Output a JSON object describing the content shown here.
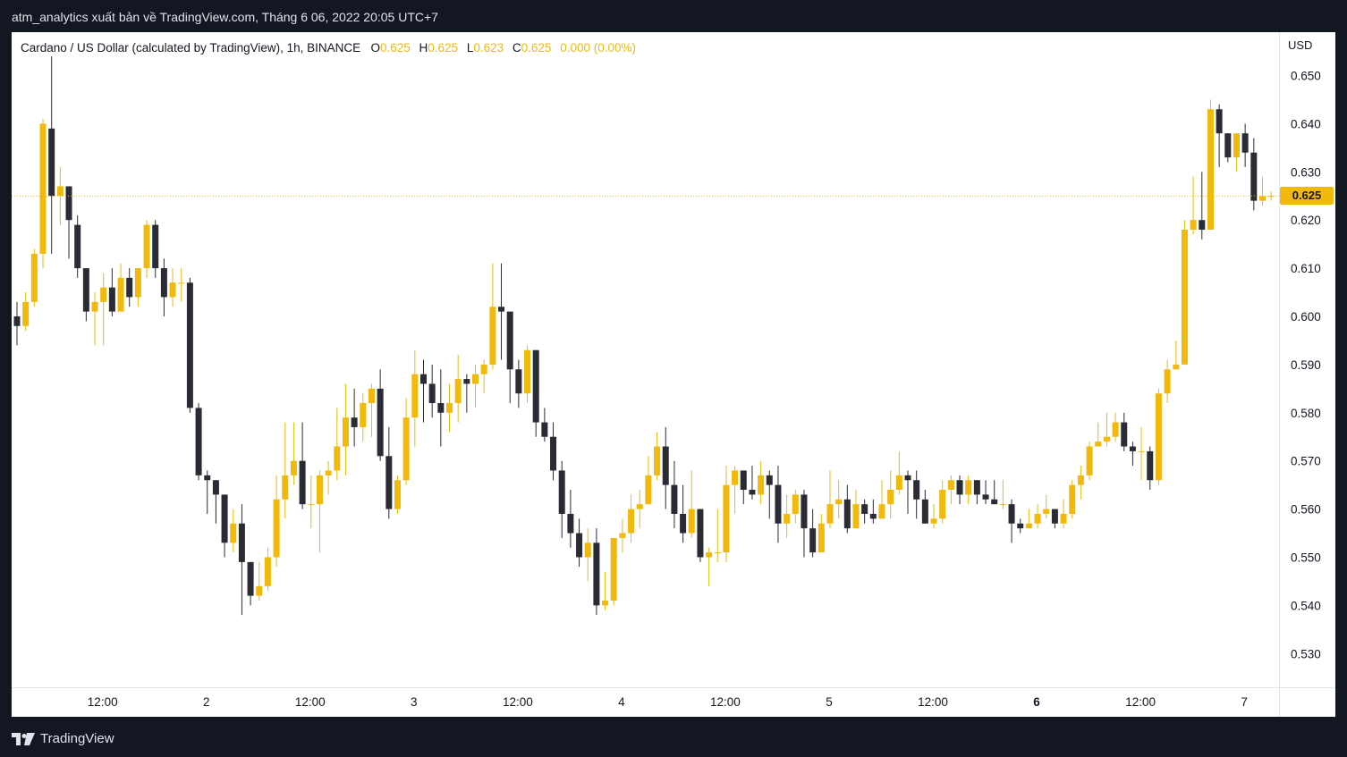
{
  "header": {
    "publisher_line": "atm_analytics xuất bản về TradingView.com, Tháng 6 06, 2022 20:05 UTC+7"
  },
  "legend": {
    "symbol": "Cardano / US Dollar (calculated by TradingView), 1h, BINANCE",
    "o_label": "O",
    "o_value": "0.625",
    "h_label": "H",
    "h_value": "0.625",
    "l_label": "L",
    "l_value": "0.623",
    "c_label": "C",
    "c_value": "0.625",
    "change": "0.000 (0.00%)"
  },
  "price_axis": {
    "currency": "USD",
    "last_price_label": "0.625"
  },
  "footer": {
    "brand": "TradingView"
  },
  "colors": {
    "up": "#f0b90b",
    "down": "#2b2b36",
    "background_outer": "#131722",
    "chart_background": "#ffffff",
    "last_price_line": "#f0b90b"
  },
  "chart_data": {
    "type": "candlestick",
    "symbol": "ADAUSD",
    "interval": "1h",
    "y_ticks": [
      "0.530",
      "0.540",
      "0.550",
      "0.560",
      "0.570",
      "0.580",
      "0.590",
      "0.600",
      "0.610",
      "0.620",
      "0.630",
      "0.640",
      "0.650"
    ],
    "ylim": [
      0.523,
      0.659
    ],
    "x_ticks": [
      {
        "label": "12:00",
        "bar": 10,
        "bold": false
      },
      {
        "label": "2",
        "bar": 22,
        "bold": false
      },
      {
        "label": "12:00",
        "bar": 34,
        "bold": false
      },
      {
        "label": "3",
        "bar": 46,
        "bold": false
      },
      {
        "label": "12:00",
        "bar": 58,
        "bold": false
      },
      {
        "label": "4",
        "bar": 70,
        "bold": false
      },
      {
        "label": "12:00",
        "bar": 82,
        "bold": false
      },
      {
        "label": "5",
        "bar": 94,
        "bold": false
      },
      {
        "label": "12:00",
        "bar": 106,
        "bold": false
      },
      {
        "label": "6",
        "bar": 118,
        "bold": true
      },
      {
        "label": "12:00",
        "bar": 130,
        "bold": false
      },
      {
        "label": "7",
        "bar": 142,
        "bold": false
      }
    ],
    "last_price": 0.625,
    "candles": [
      [
        0.6,
        0.598,
        0.603,
        0.594
      ],
      [
        0.598,
        0.603,
        0.605,
        0.597
      ],
      [
        0.603,
        0.613,
        0.614,
        0.602
      ],
      [
        0.613,
        0.64,
        0.641,
        0.61
      ],
      [
        0.639,
        0.625,
        0.654,
        0.613
      ],
      [
        0.625,
        0.627,
        0.631,
        0.619
      ],
      [
        0.627,
        0.62,
        0.627,
        0.612
      ],
      [
        0.619,
        0.61,
        0.621,
        0.608
      ],
      [
        0.61,
        0.601,
        0.61,
        0.599
      ],
      [
        0.601,
        0.603,
        0.605,
        0.594
      ],
      [
        0.603,
        0.606,
        0.609,
        0.594
      ],
      [
        0.606,
        0.601,
        0.61,
        0.6
      ],
      [
        0.601,
        0.608,
        0.611,
        0.601
      ],
      [
        0.608,
        0.604,
        0.61,
        0.602
      ],
      [
        0.604,
        0.61,
        0.61,
        0.602
      ],
      [
        0.61,
        0.619,
        0.62,
        0.608
      ],
      [
        0.619,
        0.61,
        0.62,
        0.608
      ],
      [
        0.61,
        0.604,
        0.612,
        0.6
      ],
      [
        0.604,
        0.607,
        0.61,
        0.602
      ],
      [
        0.607,
        0.607,
        0.61,
        0.603
      ],
      [
        0.607,
        0.581,
        0.608,
        0.58
      ],
      [
        0.581,
        0.567,
        0.582,
        0.566
      ],
      [
        0.567,
        0.566,
        0.568,
        0.559
      ],
      [
        0.566,
        0.563,
        0.566,
        0.557
      ],
      [
        0.563,
        0.553,
        0.563,
        0.55
      ],
      [
        0.553,
        0.557,
        0.56,
        0.551
      ],
      [
        0.557,
        0.549,
        0.561,
        0.538
      ],
      [
        0.549,
        0.542,
        0.549,
        0.54
      ],
      [
        0.542,
        0.544,
        0.549,
        0.541
      ],
      [
        0.544,
        0.55,
        0.552,
        0.543
      ],
      [
        0.55,
        0.562,
        0.567,
        0.548
      ],
      [
        0.562,
        0.567,
        0.578,
        0.558
      ],
      [
        0.567,
        0.57,
        0.578,
        0.565
      ],
      [
        0.57,
        0.561,
        0.578,
        0.56
      ],
      [
        0.561,
        0.561,
        0.567,
        0.556
      ],
      [
        0.561,
        0.567,
        0.568,
        0.551
      ],
      [
        0.567,
        0.568,
        0.57,
        0.563
      ],
      [
        0.568,
        0.573,
        0.581,
        0.566
      ],
      [
        0.573,
        0.579,
        0.586,
        0.567
      ],
      [
        0.579,
        0.577,
        0.585,
        0.573
      ],
      [
        0.577,
        0.582,
        0.584,
        0.574
      ],
      [
        0.582,
        0.585,
        0.586,
        0.575
      ],
      [
        0.585,
        0.571,
        0.589,
        0.57
      ],
      [
        0.571,
        0.56,
        0.577,
        0.558
      ],
      [
        0.56,
        0.566,
        0.567,
        0.559
      ],
      [
        0.566,
        0.579,
        0.583,
        0.565
      ],
      [
        0.579,
        0.588,
        0.593,
        0.573
      ],
      [
        0.588,
        0.586,
        0.591,
        0.578
      ],
      [
        0.586,
        0.582,
        0.59,
        0.579
      ],
      [
        0.582,
        0.58,
        0.589,
        0.573
      ],
      [
        0.58,
        0.582,
        0.586,
        0.576
      ],
      [
        0.582,
        0.587,
        0.592,
        0.578
      ],
      [
        0.587,
        0.586,
        0.588,
        0.58
      ],
      [
        0.586,
        0.588,
        0.59,
        0.581
      ],
      [
        0.588,
        0.59,
        0.591,
        0.584
      ],
      [
        0.59,
        0.602,
        0.611,
        0.589
      ],
      [
        0.602,
        0.601,
        0.611,
        0.591
      ],
      [
        0.601,
        0.589,
        0.595,
        0.582
      ],
      [
        0.589,
        0.584,
        0.591,
        0.581
      ],
      [
        0.584,
        0.593,
        0.594,
        0.582
      ],
      [
        0.593,
        0.578,
        0.593,
        0.575
      ],
      [
        0.578,
        0.575,
        0.581,
        0.574
      ],
      [
        0.575,
        0.568,
        0.578,
        0.566
      ],
      [
        0.568,
        0.559,
        0.57,
        0.554
      ],
      [
        0.559,
        0.555,
        0.564,
        0.552
      ],
      [
        0.555,
        0.55,
        0.558,
        0.548
      ],
      [
        0.55,
        0.553,
        0.556,
        0.545
      ],
      [
        0.553,
        0.54,
        0.556,
        0.538
      ],
      [
        0.54,
        0.541,
        0.547,
        0.539
      ],
      [
        0.541,
        0.554,
        0.554,
        0.54
      ],
      [
        0.554,
        0.555,
        0.558,
        0.551
      ],
      [
        0.555,
        0.56,
        0.563,
        0.553
      ],
      [
        0.56,
        0.561,
        0.564,
        0.556
      ],
      [
        0.561,
        0.567,
        0.571,
        0.561
      ],
      [
        0.567,
        0.573,
        0.576,
        0.566
      ],
      [
        0.573,
        0.565,
        0.577,
        0.56
      ],
      [
        0.565,
        0.559,
        0.57,
        0.556
      ],
      [
        0.559,
        0.555,
        0.565,
        0.553
      ],
      [
        0.555,
        0.56,
        0.568,
        0.554
      ],
      [
        0.56,
        0.55,
        0.56,
        0.549
      ],
      [
        0.55,
        0.551,
        0.552,
        0.544
      ],
      [
        0.551,
        0.551,
        0.56,
        0.549
      ],
      [
        0.551,
        0.565,
        0.569,
        0.549
      ],
      [
        0.565,
        0.568,
        0.569,
        0.559
      ],
      [
        0.568,
        0.564,
        0.568,
        0.561
      ],
      [
        0.564,
        0.563,
        0.569,
        0.562
      ],
      [
        0.563,
        0.567,
        0.57,
        0.561
      ],
      [
        0.567,
        0.565,
        0.568,
        0.558
      ],
      [
        0.565,
        0.557,
        0.569,
        0.553
      ],
      [
        0.557,
        0.559,
        0.563,
        0.554
      ],
      [
        0.559,
        0.563,
        0.564,
        0.557
      ],
      [
        0.563,
        0.556,
        0.564,
        0.55
      ],
      [
        0.556,
        0.551,
        0.56,
        0.55
      ],
      [
        0.551,
        0.557,
        0.559,
        0.552
      ],
      [
        0.557,
        0.561,
        0.568,
        0.556
      ],
      [
        0.561,
        0.562,
        0.566,
        0.558
      ],
      [
        0.562,
        0.556,
        0.565,
        0.555
      ],
      [
        0.556,
        0.561,
        0.564,
        0.556
      ],
      [
        0.561,
        0.559,
        0.562,
        0.557
      ],
      [
        0.559,
        0.558,
        0.562,
        0.557
      ],
      [
        0.558,
        0.561,
        0.566,
        0.558
      ],
      [
        0.561,
        0.564,
        0.568,
        0.558
      ],
      [
        0.564,
        0.567,
        0.572,
        0.563
      ],
      [
        0.567,
        0.566,
        0.568,
        0.559
      ],
      [
        0.566,
        0.562,
        0.568,
        0.558
      ],
      [
        0.562,
        0.557,
        0.564,
        0.557
      ],
      [
        0.557,
        0.558,
        0.561,
        0.556
      ],
      [
        0.558,
        0.564,
        0.566,
        0.557
      ],
      [
        0.564,
        0.566,
        0.567,
        0.561
      ],
      [
        0.566,
        0.563,
        0.567,
        0.561
      ],
      [
        0.563,
        0.566,
        0.567,
        0.561
      ],
      [
        0.566,
        0.563,
        0.566,
        0.561
      ],
      [
        0.563,
        0.562,
        0.566,
        0.561
      ],
      [
        0.562,
        0.561,
        0.566,
        0.561
      ],
      [
        0.561,
        0.561,
        0.566,
        0.56
      ],
      [
        0.561,
        0.557,
        0.562,
        0.553
      ],
      [
        0.557,
        0.556,
        0.558,
        0.555
      ],
      [
        0.556,
        0.557,
        0.56,
        0.556
      ],
      [
        0.557,
        0.559,
        0.561,
        0.556
      ],
      [
        0.559,
        0.56,
        0.563,
        0.558
      ],
      [
        0.56,
        0.557,
        0.56,
        0.556
      ],
      [
        0.557,
        0.559,
        0.562,
        0.556
      ],
      [
        0.559,
        0.565,
        0.566,
        0.558
      ],
      [
        0.565,
        0.567,
        0.569,
        0.562
      ],
      [
        0.567,
        0.573,
        0.574,
        0.566
      ],
      [
        0.573,
        0.574,
        0.578,
        0.573
      ],
      [
        0.574,
        0.575,
        0.58,
        0.573
      ],
      [
        0.575,
        0.578,
        0.58,
        0.574
      ],
      [
        0.578,
        0.573,
        0.58,
        0.572
      ],
      [
        0.573,
        0.572,
        0.574,
        0.569
      ],
      [
        0.572,
        0.572,
        0.577,
        0.566
      ],
      [
        0.572,
        0.566,
        0.573,
        0.564
      ],
      [
        0.566,
        0.584,
        0.585,
        0.565
      ],
      [
        0.584,
        0.589,
        0.591,
        0.582
      ],
      [
        0.589,
        0.59,
        0.595,
        0.589
      ],
      [
        0.59,
        0.618,
        0.62,
        0.59
      ],
      [
        0.618,
        0.62,
        0.629,
        0.617
      ],
      [
        0.62,
        0.618,
        0.63,
        0.616
      ],
      [
        0.618,
        0.643,
        0.645,
        0.618
      ],
      [
        0.643,
        0.638,
        0.644,
        0.631
      ],
      [
        0.638,
        0.633,
        0.638,
        0.632
      ],
      [
        0.633,
        0.638,
        0.638,
        0.63
      ],
      [
        0.638,
        0.634,
        0.64,
        0.631
      ],
      [
        0.634,
        0.624,
        0.637,
        0.622
      ],
      [
        0.624,
        0.625,
        0.629,
        0.623
      ],
      [
        0.625,
        0.625,
        0.626,
        0.624
      ]
    ]
  }
}
